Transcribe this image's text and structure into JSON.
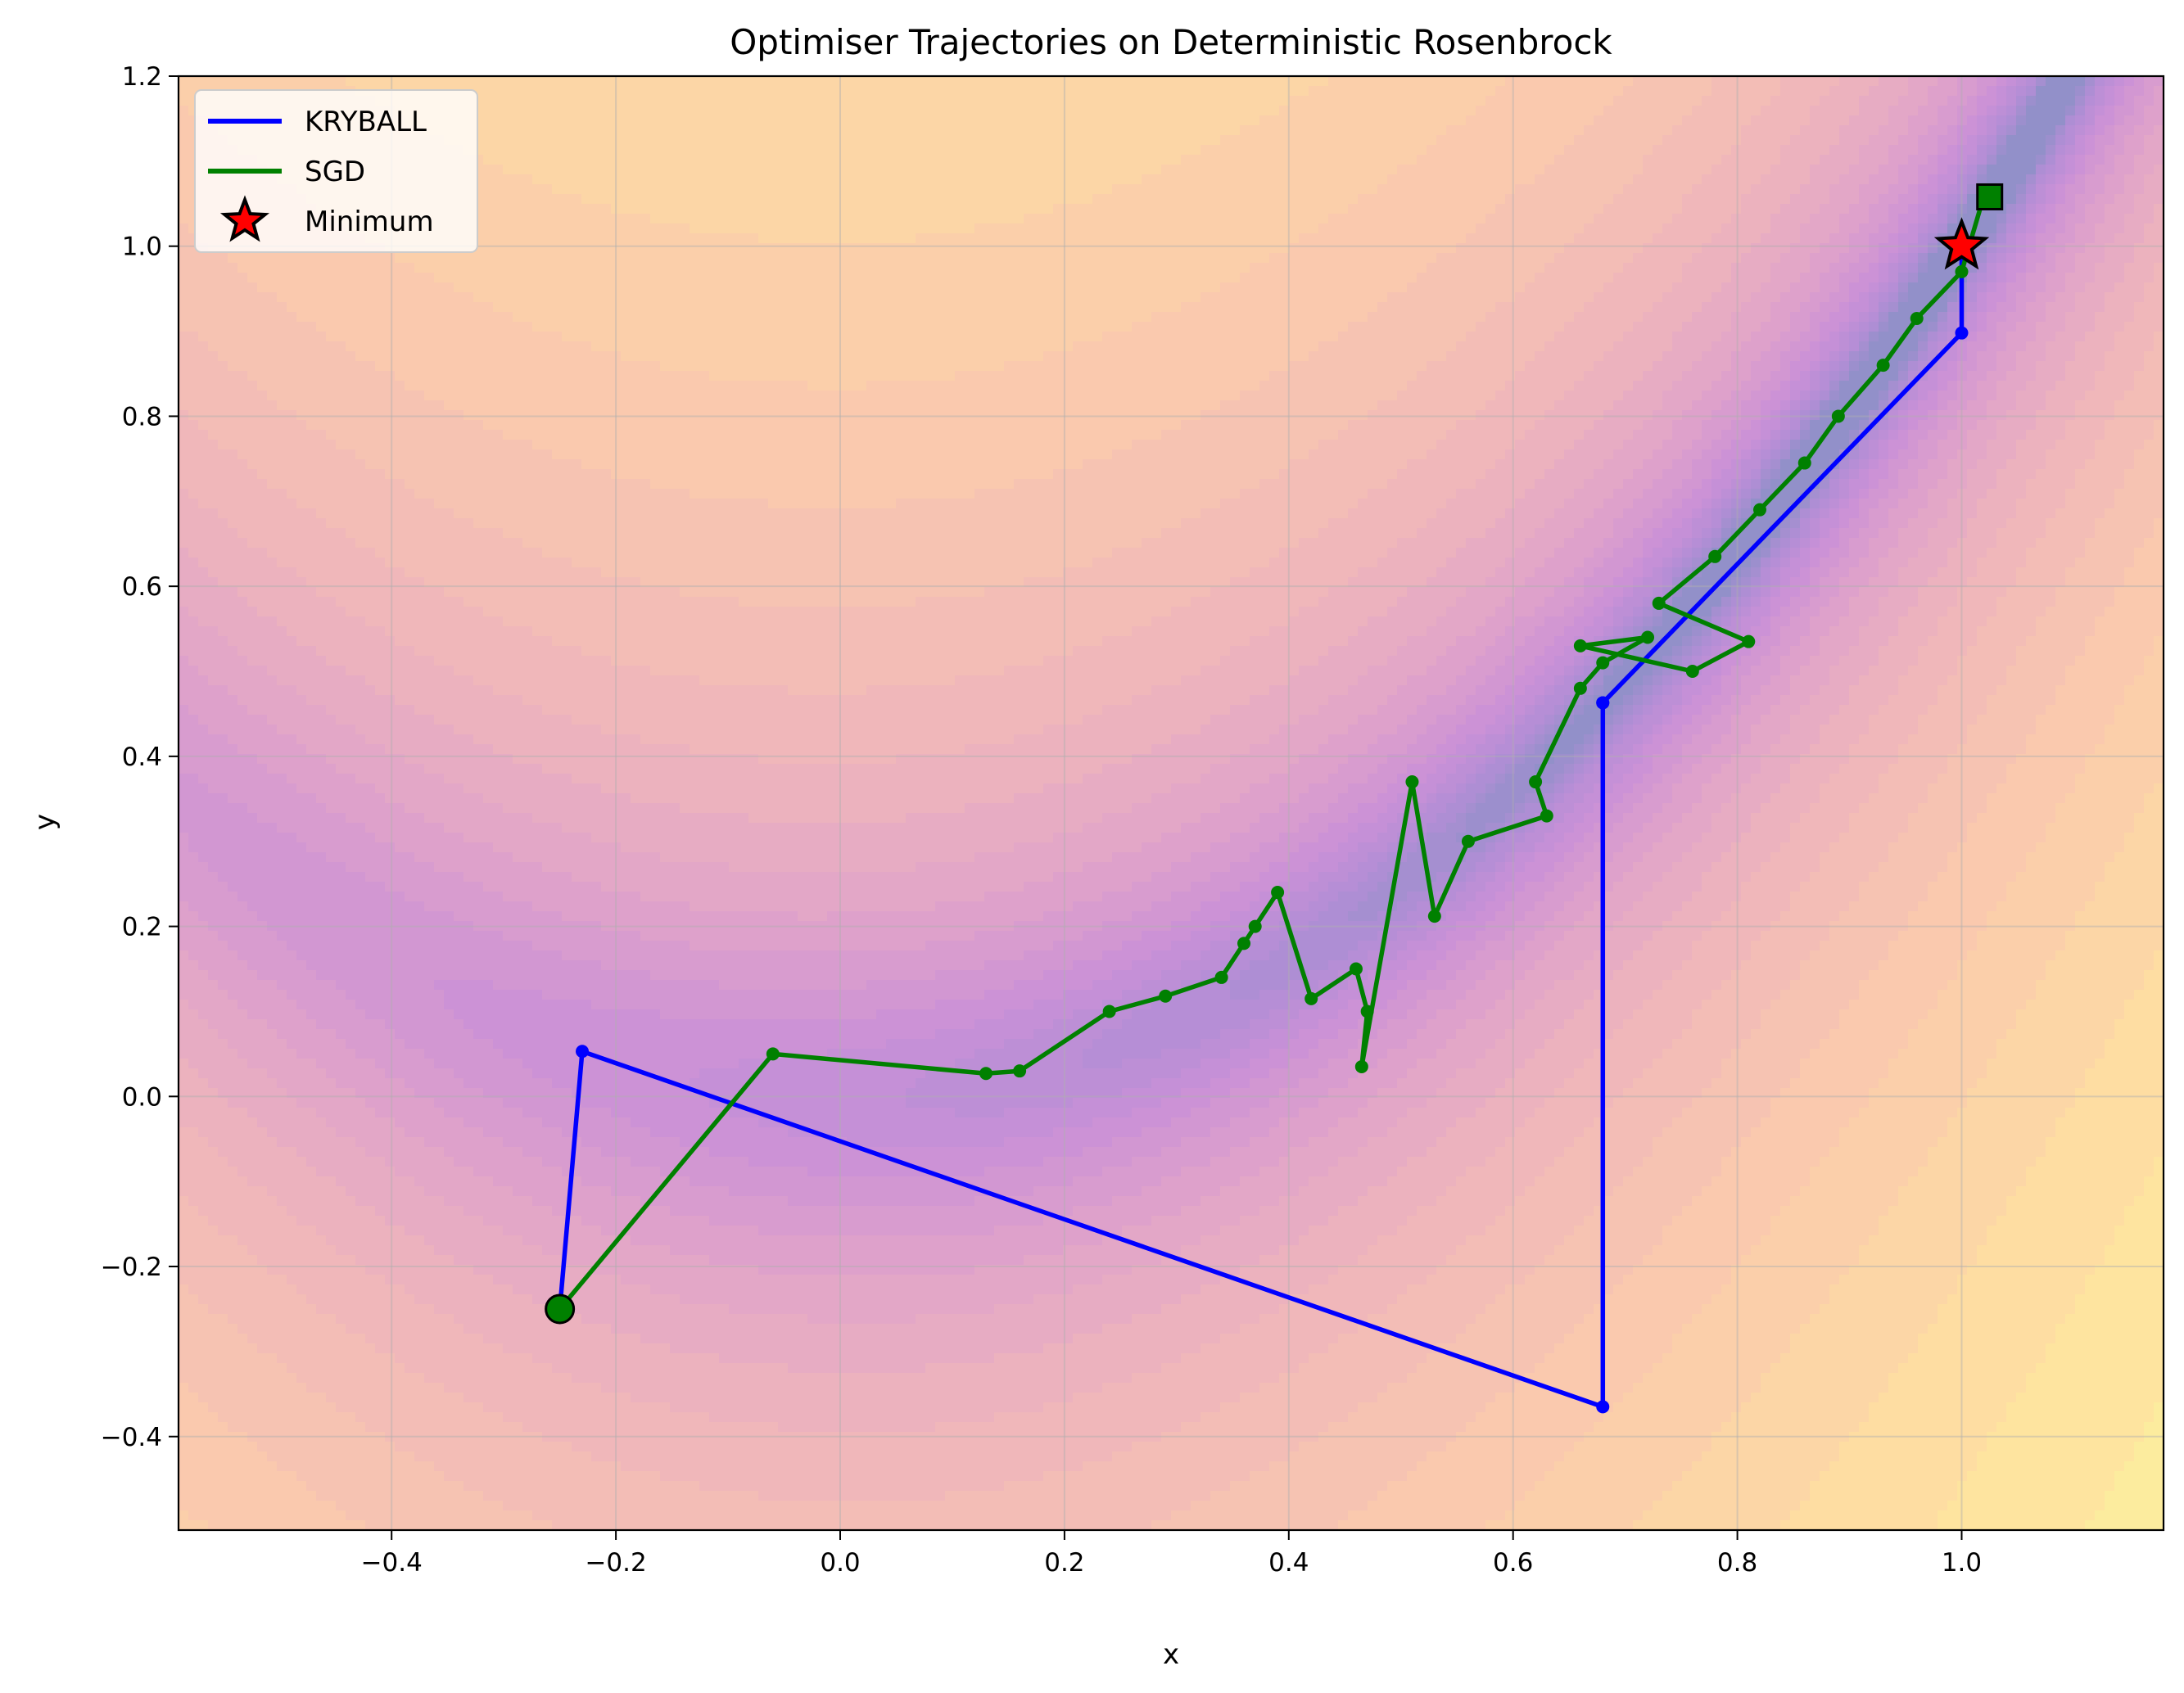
{
  "chart_data": {
    "type": "line",
    "title": "Optimiser Trajectories on Deterministic Rosenbrock",
    "xlabel": "x",
    "ylabel": "y",
    "xlim": [
      -0.59,
      1.18
    ],
    "ylim": [
      -0.51,
      1.2
    ],
    "xticks": [
      -0.4,
      -0.2,
      0.0,
      0.2,
      0.4,
      0.6,
      0.8,
      1.0
    ],
    "xtick_labels": [
      "−0.4",
      "−0.2",
      "0.0",
      "0.2",
      "0.4",
      "0.6",
      "0.8",
      "1.0"
    ],
    "yticks": [
      -0.4,
      -0.2,
      0.0,
      0.2,
      0.4,
      0.6,
      0.8,
      1.0,
      1.2
    ],
    "ytick_labels": [
      "−0.4",
      "−0.2",
      "0.0",
      "0.2",
      "0.4",
      "0.6",
      "0.8",
      "1.0",
      "1.2"
    ],
    "grid": true,
    "legend_position": "upper-left",
    "background": "filled contour of the Rosenbrock function (log scale), plasma colormap, semi-transparent",
    "series": [
      {
        "name": "KRYBALL",
        "color": "#0000ff",
        "x": [
          -0.25,
          -0.23,
          0.68,
          0.68,
          0.68,
          1.0,
          1.0,
          1.0
        ],
        "y": [
          -0.25,
          0.053,
          -0.365,
          0.463,
          0.463,
          0.898,
          0.998,
          1.0
        ]
      },
      {
        "name": "SGD",
        "color": "#008000",
        "x": [
          -0.25,
          -0.06,
          0.13,
          0.16,
          0.24,
          0.29,
          0.34,
          0.36,
          0.37,
          0.39,
          0.42,
          0.46,
          0.47,
          0.465,
          0.51,
          0.53,
          0.56,
          0.63,
          0.62,
          0.66,
          0.68,
          0.72,
          0.66,
          0.76,
          0.81,
          0.73,
          0.78,
          0.82,
          0.86,
          0.89,
          0.93,
          0.96,
          1.0,
          1.02
        ],
        "y": [
          -0.25,
          0.05,
          0.027,
          0.03,
          0.1,
          0.118,
          0.14,
          0.18,
          0.2,
          0.24,
          0.115,
          0.15,
          0.1,
          0.035,
          0.37,
          0.212,
          0.3,
          0.33,
          0.37,
          0.48,
          0.51,
          0.54,
          0.53,
          0.5,
          0.535,
          0.58,
          0.635,
          0.69,
          0.745,
          0.8,
          0.86,
          0.915,
          0.97,
          1.06
        ]
      }
    ],
    "markers": [
      {
        "label": "Minimum",
        "x": 1.0,
        "y": 1.0,
        "shape": "star",
        "fill": "#ff0000",
        "edge": "#000000"
      },
      {
        "label": "",
        "x": -0.25,
        "y": -0.25,
        "shape": "circle",
        "fill": "#008000",
        "edge": "#000000"
      },
      {
        "label": "",
        "x": 1.025,
        "y": 1.058,
        "shape": "square",
        "fill": "#008000",
        "edge": "#000000"
      }
    ]
  }
}
